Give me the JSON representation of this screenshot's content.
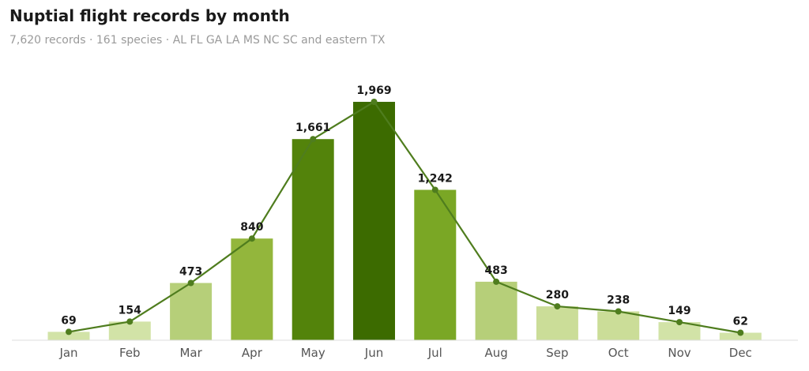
{
  "header": {
    "title": "Nuptial flight records by month",
    "subtitle": "7,620 records · 161 species · AL FL GA LA MS NC SC and eastern TX"
  },
  "chart_data": {
    "type": "bar",
    "overlay": "line",
    "categories": [
      "Jan",
      "Feb",
      "Mar",
      "Apr",
      "May",
      "Jun",
      "Jul",
      "Aug",
      "Sep",
      "Oct",
      "Nov",
      "Dec"
    ],
    "values": [
      69,
      154,
      473,
      840,
      1661,
      1969,
      1242,
      483,
      280,
      238,
      149,
      62
    ],
    "value_labels": [
      "69",
      "154",
      "473",
      "840",
      "1,661",
      "1,969",
      "1,242",
      "483",
      "280",
      "238",
      "149",
      "62"
    ],
    "bar_colors": [
      "#d2e3a7",
      "#d2e3a7",
      "#b6cf79",
      "#93b63c",
      "#53830b",
      "#3c6b00",
      "#7aa725",
      "#b6cf79",
      "#cbdd98",
      "#cbdd98",
      "#d2e3a7",
      "#d2e3a7"
    ],
    "line_color": "#4f7d1e",
    "axis_color": "#dddddd",
    "ylim": [
      0,
      2000
    ],
    "grid": false,
    "legend": "none"
  }
}
